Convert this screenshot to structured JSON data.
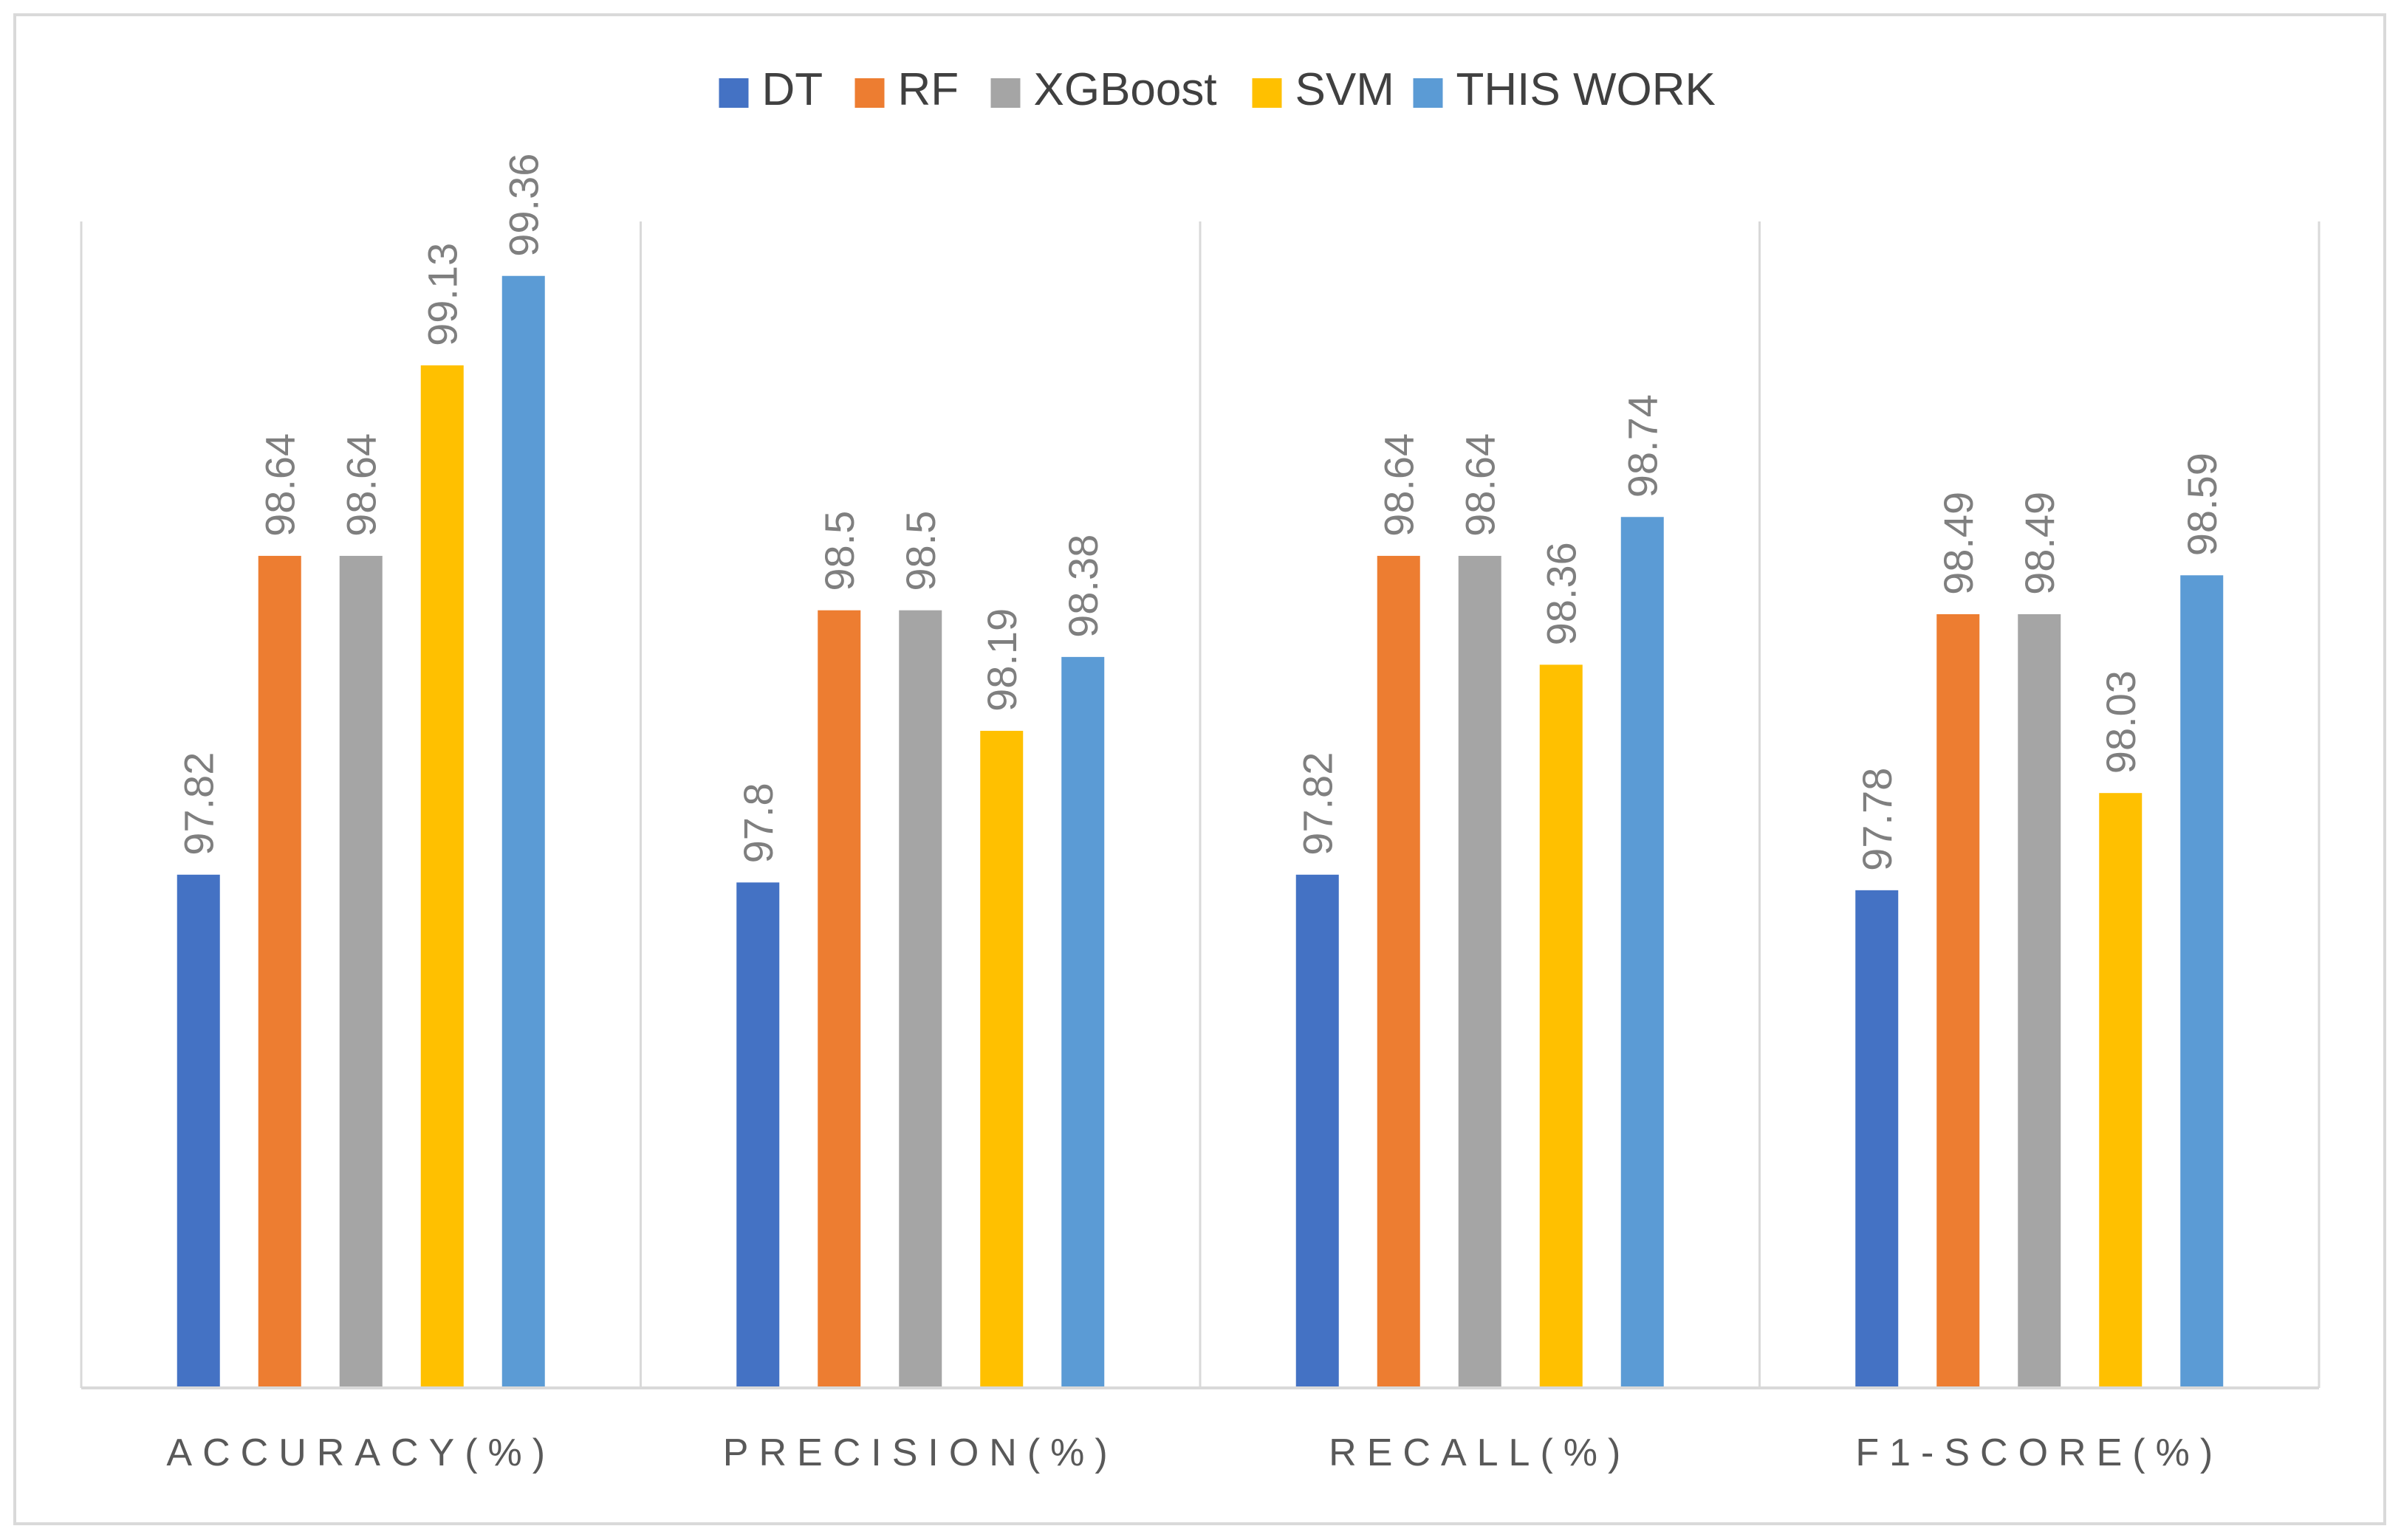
{
  "chart_data": {
    "type": "bar",
    "categories": [
      "ACCURACY(%)",
      "PRECISION(%)",
      "RECALL(%)",
      "F1-SCORE(%)"
    ],
    "series": [
      {
        "name": "DT",
        "color": "#4472C4",
        "values": [
          97.82,
          97.8,
          97.82,
          97.78
        ]
      },
      {
        "name": "RF",
        "color": "#ED7D31",
        "values": [
          98.64,
          98.5,
          98.64,
          98.49
        ]
      },
      {
        "name": "XGBoost",
        "color": "#A5A5A5",
        "values": [
          98.64,
          98.5,
          98.64,
          98.49
        ]
      },
      {
        "name": "SVM",
        "color": "#FFC000",
        "values": [
          99.13,
          98.19,
          98.36,
          98.03
        ]
      },
      {
        "name": "THIS WORK",
        "color": "#5B9BD5",
        "values": [
          99.36,
          98.38,
          98.74,
          98.59
        ]
      }
    ],
    "value_labels": [
      [
        "97.82",
        "97.8",
        "97.82",
        "97.78"
      ],
      [
        "98.64",
        "98.5",
        "98.64",
        "98.49"
      ],
      [
        "98.64",
        "98.5",
        "98.64",
        "98.49"
      ],
      [
        "99.13",
        "98.19",
        "98.36",
        "98.03"
      ],
      [
        "99.36",
        "98.38",
        "98.74",
        "98.59"
      ]
    ],
    "title": "",
    "xlabel": "",
    "ylabel": "",
    "ylim": [
      96.5,
      99.5
    ],
    "grid": false,
    "legend": "top-center"
  }
}
